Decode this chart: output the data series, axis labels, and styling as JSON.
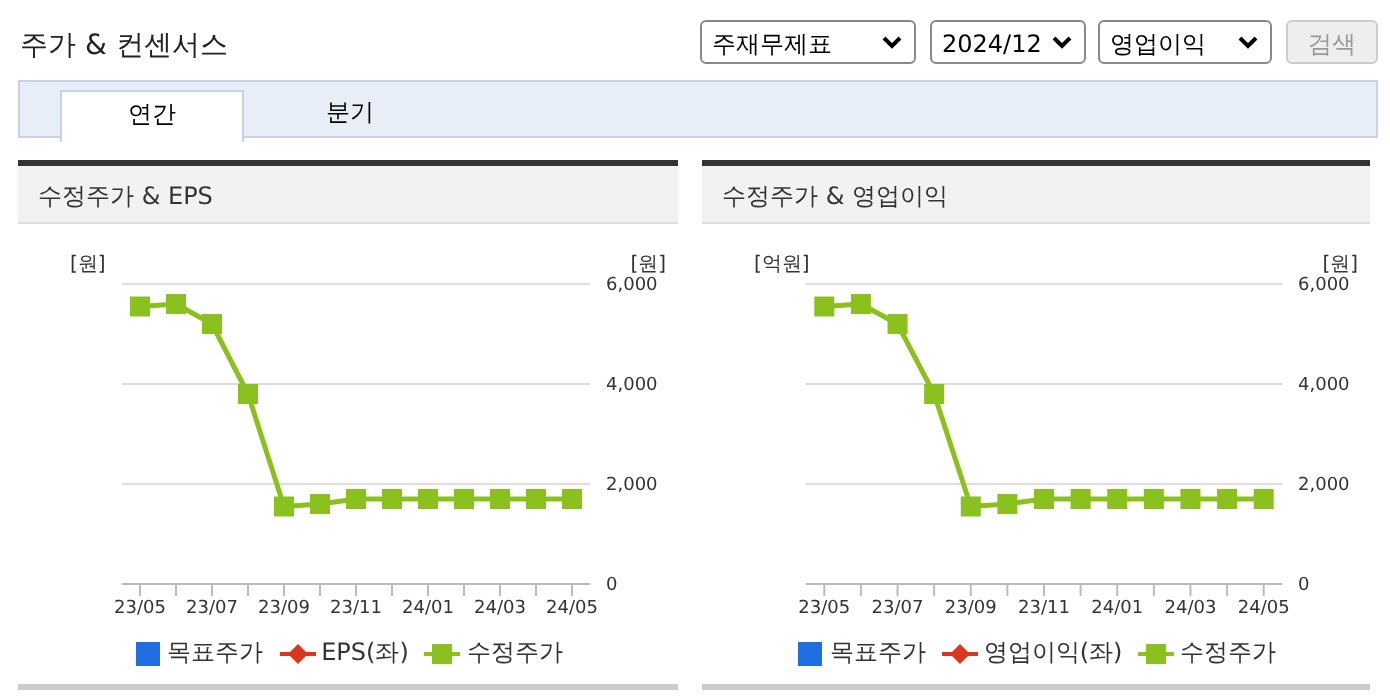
{
  "chart_data": [
    {
      "type": "other",
      "title": "주가 & 컨센서스",
      "annotations": [
        "주재무제표",
        "2024/12",
        "영업이익",
        "검색",
        "연간",
        "분기"
      ]
    },
    {
      "type": "line",
      "title": "수정주가 & EPS",
      "ylabel": "[원]",
      "y2label": "[원]",
      "categories": [
        "23/05",
        null,
        "23/07",
        null,
        "23/09",
        null,
        "23/11",
        null,
        "24/01",
        null,
        "24/03",
        null,
        "24/05"
      ],
      "y2lim": [
        0,
        6000
      ],
      "y2ticks": [
        0,
        {
          "value": 2000,
          "label": "2,000"
        },
        {
          "value": 4000,
          "label": "4,000"
        },
        {
          "value": 6000,
          "label": "6,000"
        }
      ],
      "grid": "y",
      "legend": "bottom",
      "series": [
        {
          "name": "목표주가",
          "type": "bar",
          "color": "#1f6fe0",
          "values": [
            null,
            null,
            null,
            null,
            null,
            null,
            null,
            null,
            null,
            null,
            null,
            null,
            null
          ]
        },
        {
          "name": "EPS(좌)",
          "type": "line",
          "marker": "diamond",
          "color": "#d9381e",
          "values": [
            null,
            null,
            null,
            null,
            null,
            null,
            null,
            null,
            null,
            null,
            null,
            null,
            null
          ]
        },
        {
          "name": "수정주가",
          "type": "line",
          "marker": "square",
          "axis": "y2",
          "color": "#8bc11e",
          "values": [
            5550,
            5600,
            5200,
            3800,
            1550,
            1600,
            1700,
            1700,
            1700,
            1700,
            1700,
            1700,
            1700
          ]
        }
      ]
    },
    {
      "type": "line",
      "title": "수정주가 & 영업이익",
      "ylabel": "[억원]",
      "y2label": "[원]",
      "categories": [
        "23/05",
        null,
        "23/07",
        null,
        "23/09",
        null,
        "23/11",
        null,
        "24/01",
        null,
        "24/03",
        null,
        "24/05"
      ],
      "y2lim": [
        0,
        6000
      ],
      "y2ticks": [
        0,
        {
          "value": 2000,
          "label": "2,000"
        },
        {
          "value": 4000,
          "label": "4,000"
        },
        {
          "value": 6000,
          "label": "6,000"
        }
      ],
      "grid": "y",
      "legend": "bottom",
      "series": [
        {
          "name": "목표주가",
          "type": "bar",
          "color": "#1f6fe0",
          "values": [
            null,
            null,
            null,
            null,
            null,
            null,
            null,
            null,
            null,
            null,
            null,
            null,
            null
          ]
        },
        {
          "name": "영업이익(좌)",
          "type": "line",
          "marker": "diamond",
          "color": "#d9381e",
          "values": [
            null,
            null,
            null,
            null,
            null,
            null,
            null,
            null,
            null,
            null,
            null,
            null,
            null
          ]
        },
        {
          "name": "수정주가",
          "type": "line",
          "marker": "square",
          "axis": "y2",
          "color": "#8bc11e",
          "values": [
            5550,
            5600,
            5200,
            3800,
            1550,
            1600,
            1700,
            1700,
            1700,
            1700,
            1700,
            1700,
            1700
          ]
        }
      ]
    }
  ]
}
